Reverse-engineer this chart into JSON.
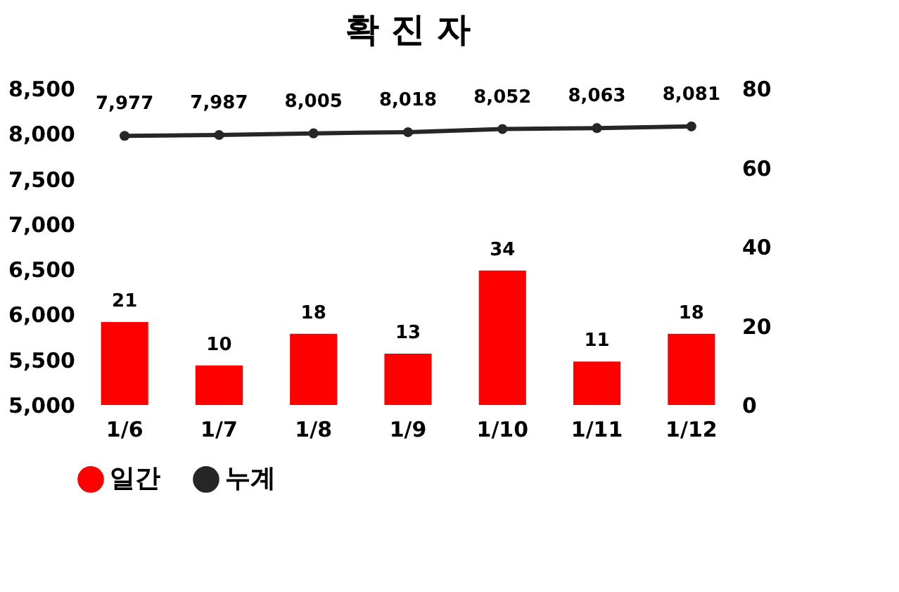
{
  "chart_data": {
    "type": "bar",
    "title": "확 진 자",
    "categories": [
      "1/6",
      "1/7",
      "1/8",
      "1/9",
      "1/10",
      "1/11",
      "1/12"
    ],
    "series": [
      {
        "name": "일간",
        "axis": "y2",
        "color": "#ff0000",
        "values": [
          21,
          10,
          18,
          13,
          34,
          11,
          18
        ]
      },
      {
        "name": "누계",
        "type": "line",
        "axis": "y",
        "color": "#262626",
        "values": [
          7977,
          7987,
          8005,
          8018,
          8052,
          8063,
          8081
        ],
        "value_labels": [
          "7,977",
          "7,987",
          "8,005",
          "8,018",
          "8,052",
          "8,063",
          "8,081"
        ]
      }
    ],
    "ylim": [
      5000,
      8500
    ],
    "yticks": [
      {
        "value": 5000,
        "label": "5,000"
      },
      {
        "value": 5500,
        "label": "5,500"
      },
      {
        "value": 6000,
        "label": "6,000"
      },
      {
        "value": 6500,
        "label": "6,500"
      },
      {
        "value": 7000,
        "label": "7,000"
      },
      {
        "value": 7500,
        "label": "7,500"
      },
      {
        "value": 8000,
        "label": "8,000"
      },
      {
        "value": 8500,
        "label": "8,500"
      }
    ],
    "y2lim": [
      0,
      80
    ],
    "y2ticks": [
      0,
      20,
      40,
      60,
      80
    ],
    "data_labels": true,
    "legend": "bottom",
    "marker": "circle",
    "line_style": "solid",
    "grid": false
  }
}
